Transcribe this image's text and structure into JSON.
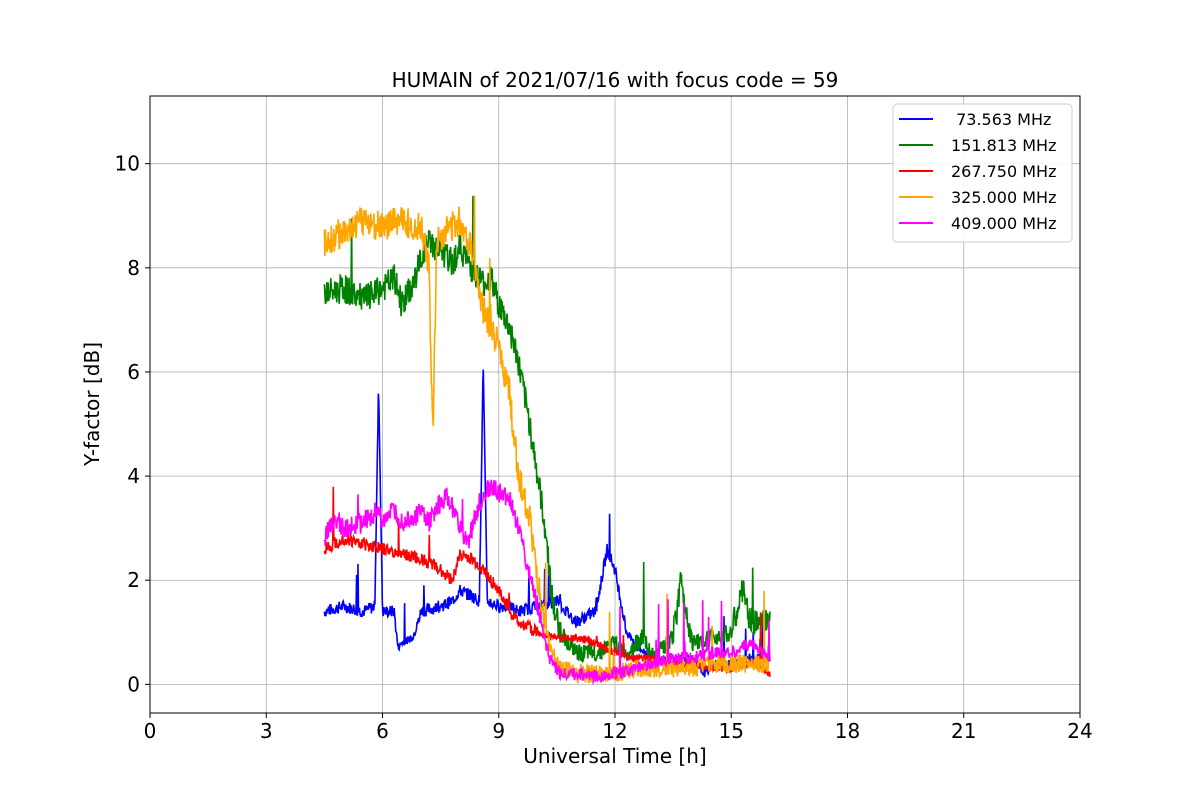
{
  "chart_data": {
    "type": "line",
    "title": "HUMAIN of 2021/07/16 with focus code = 59",
    "xlabel": "Universal Time [h]",
    "ylabel": "Y-factor [dB]",
    "xlim": [
      0,
      24
    ],
    "ylim": [
      -0.55,
      11.3
    ],
    "xticks": [
      0,
      3,
      6,
      9,
      12,
      15,
      18,
      21,
      24
    ],
    "xtick_labels": [
      "0",
      "3",
      "6",
      "9",
      "12",
      "15",
      "18",
      "21",
      "24"
    ],
    "yticks": [
      0,
      2,
      4,
      6,
      8,
      10
    ],
    "ytick_labels": [
      "0",
      "2",
      "4",
      "6",
      "8",
      "10"
    ],
    "grid": true,
    "legend_position": "top-right",
    "series": [
      {
        "name": " 73.563 MHz",
        "color": "#0000ff",
        "x": [
          4.5,
          5.0,
          5.5,
          5.8,
          5.9,
          6.0,
          6.3,
          6.4,
          6.5,
          6.8,
          7.0,
          7.5,
          7.8,
          8.0,
          8.3,
          8.5,
          8.6,
          8.7,
          9.0,
          9.3,
          9.5,
          10.0,
          10.5,
          11.0,
          11.5,
          11.8,
          12.0,
          12.3,
          12.6,
          13.0,
          13.5,
          14.0,
          14.3,
          14.6,
          15.0,
          15.5,
          16.0
        ],
        "y": [
          1.4,
          1.5,
          1.4,
          1.5,
          5.8,
          1.4,
          1.4,
          0.7,
          0.8,
          0.9,
          1.4,
          1.5,
          1.6,
          1.8,
          1.7,
          1.6,
          6.2,
          1.6,
          1.5,
          1.5,
          1.4,
          1.5,
          1.6,
          1.2,
          1.4,
          2.6,
          2.2,
          1.0,
          0.7,
          0.5,
          0.5,
          0.5,
          0.2,
          0.4,
          0.4,
          0.5,
          0.5
        ]
      },
      {
        "name": "151.813 MHz",
        "color": "#008000",
        "x": [
          4.5,
          5.0,
          5.5,
          5.8,
          6.0,
          6.3,
          6.5,
          6.8,
          7.0,
          7.2,
          7.5,
          7.8,
          8.0,
          8.3,
          8.6,
          8.8,
          9.0,
          9.3,
          9.5,
          9.8,
          10.0,
          10.2,
          10.4,
          10.6,
          11.0,
          11.5,
          12.0,
          12.3,
          12.7,
          13.0,
          13.5,
          13.7,
          14.0,
          14.5,
          15.0,
          15.3,
          15.5,
          16.0
        ],
        "y": [
          7.5,
          7.6,
          7.4,
          7.5,
          7.6,
          7.8,
          7.3,
          7.7,
          8.2,
          8.5,
          8.3,
          8.1,
          8.4,
          8.0,
          7.7,
          7.8,
          7.3,
          6.8,
          6.2,
          5.0,
          4.0,
          3.0,
          1.5,
          1.0,
          0.6,
          0.6,
          0.8,
          0.6,
          0.9,
          0.5,
          0.9,
          2.0,
          0.8,
          0.9,
          1.0,
          1.8,
          1.2,
          1.2
        ]
      },
      {
        "name": "267.750 MHz",
        "color": "#ff0000",
        "x": [
          4.5,
          5.0,
          5.5,
          6.0,
          6.5,
          7.0,
          7.3,
          7.5,
          7.8,
          8.0,
          8.3,
          8.6,
          9.0,
          9.3,
          9.5,
          10.0,
          10.5,
          11.0,
          11.5,
          12.0,
          12.5,
          13.0,
          13.5,
          14.0,
          14.5,
          15.0,
          15.5,
          15.8,
          16.0
        ],
        "y": [
          2.6,
          2.8,
          2.7,
          2.6,
          2.5,
          2.4,
          2.3,
          2.2,
          2.0,
          2.5,
          2.4,
          2.2,
          1.8,
          1.4,
          1.2,
          1.0,
          0.9,
          0.9,
          0.8,
          0.6,
          0.5,
          0.5,
          0.4,
          0.4,
          0.3,
          0.3,
          0.4,
          0.3,
          0.2
        ]
      },
      {
        "name": "325.000 MHz",
        "color": "#ffa500",
        "x": [
          4.5,
          5.0,
          5.5,
          6.0,
          6.5,
          7.0,
          7.2,
          7.3,
          7.4,
          7.6,
          7.8,
          8.0,
          8.3,
          8.6,
          8.8,
          9.0,
          9.3,
          9.5,
          9.8,
          10.0,
          10.2,
          10.4,
          10.6,
          11.0,
          11.5,
          12.0,
          12.5,
          13.0,
          13.5,
          14.0,
          14.5,
          15.0,
          15.5,
          16.0
        ],
        "y": [
          8.5,
          8.7,
          8.9,
          8.8,
          8.9,
          8.8,
          8.0,
          4.8,
          8.5,
          8.7,
          8.8,
          8.9,
          8.4,
          7.2,
          6.8,
          6.5,
          5.5,
          4.0,
          3.2,
          2.0,
          1.0,
          0.6,
          0.3,
          0.2,
          0.2,
          0.2,
          0.3,
          0.3,
          0.3,
          0.3,
          0.4,
          0.4,
          0.4,
          0.4
        ]
      },
      {
        "name": "409.000 MHz",
        "color": "#ff00ff",
        "x": [
          4.5,
          4.8,
          5.0,
          5.5,
          5.8,
          6.0,
          6.3,
          6.5,
          7.0,
          7.2,
          7.5,
          7.7,
          8.0,
          8.2,
          8.5,
          8.8,
          9.0,
          9.3,
          9.5,
          9.7,
          10.0,
          10.3,
          10.6,
          11.0,
          11.5,
          12.0,
          12.5,
          13.0,
          13.5,
          14.0,
          14.5,
          15.0,
          15.5,
          15.8,
          16.0
        ],
        "y": [
          2.8,
          3.2,
          3.0,
          3.1,
          3.3,
          3.2,
          3.3,
          3.1,
          3.3,
          3.1,
          3.5,
          3.6,
          3.0,
          2.7,
          3.5,
          3.8,
          3.7,
          3.5,
          3.0,
          2.4,
          1.5,
          0.5,
          0.2,
          0.2,
          0.15,
          0.2,
          0.3,
          0.4,
          0.5,
          0.5,
          0.6,
          0.6,
          0.8,
          0.6,
          0.5
        ]
      }
    ]
  }
}
